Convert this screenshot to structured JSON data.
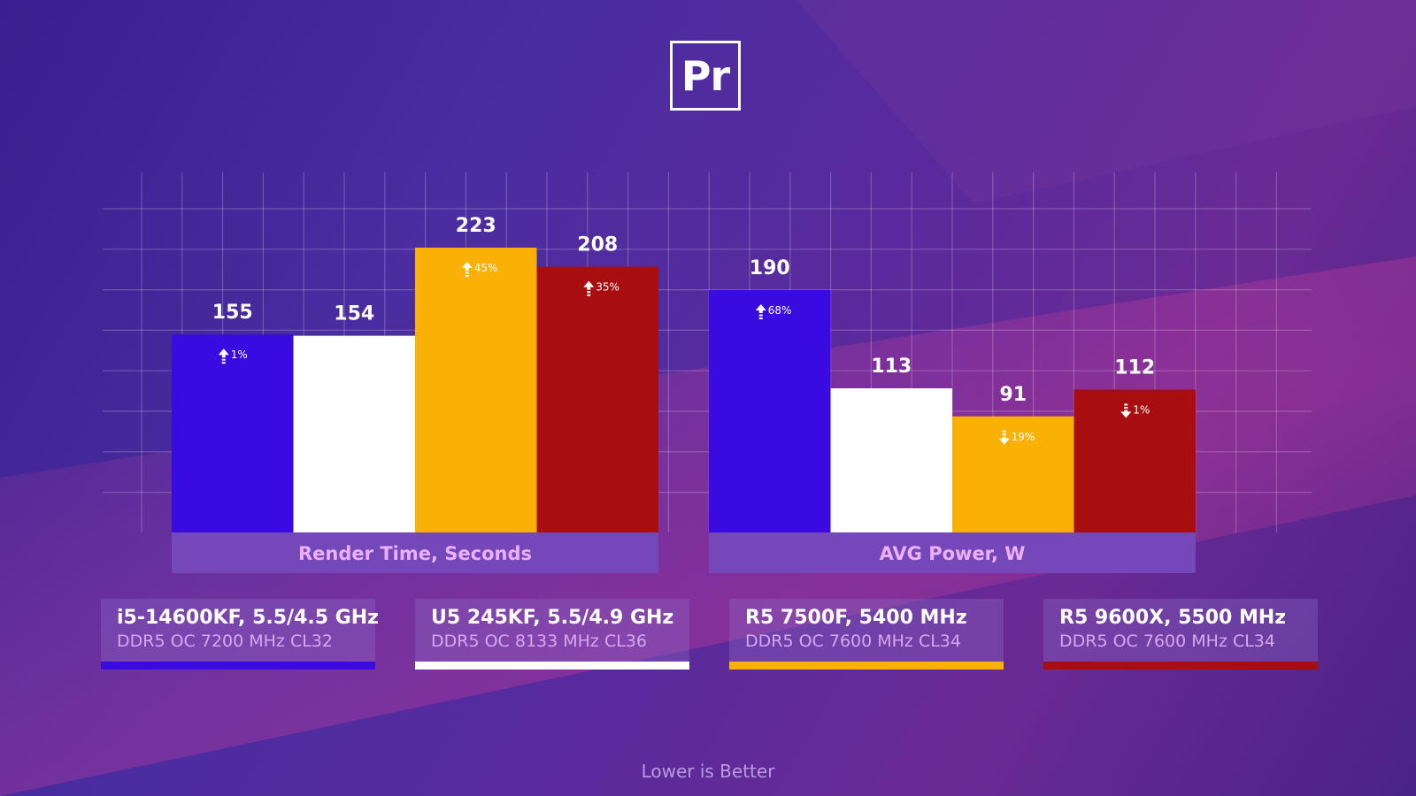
{
  "logo_text": "Pr",
  "footer": "Lower is Better",
  "colors": {
    "i5": "#3a0be0",
    "u5": "#ffffff",
    "r5_7500f": "#fbb006",
    "r5_9600x": "#a80e10",
    "category_band": "#7448b8",
    "category_text": "#ecb0ff"
  },
  "legend": [
    {
      "name": "i5-14600KF, 5.5/4.5 GHz",
      "sub": "DDR5 OC 7200 MHz CL32",
      "color": "#3a0be0"
    },
    {
      "name": "U5 245KF, 5.5/4.9 GHz",
      "sub": "DDR5 OC 8133 MHz CL36",
      "color": "#ffffff"
    },
    {
      "name": "R5 7500F, 5400 MHz",
      "sub": "DDR5 OC 7600 MHz CL34",
      "color": "#fbb006"
    },
    {
      "name": "R5 9600X, 5500 MHz",
      "sub": "DDR5 OC 7600 MHz CL34",
      "color": "#a80e10"
    }
  ],
  "chart_data": {
    "type": "bar",
    "categories": [
      "Render Time, Seconds",
      "AVG Power, W"
    ],
    "series": [
      {
        "name": "i5-14600KF, 5.5/4.5 GHz",
        "color": "#3a0be0",
        "values": [
          155,
          190
        ],
        "changes": [
          {
            "dir": "up",
            "text": "1%"
          },
          {
            "dir": "up",
            "text": "68%"
          }
        ]
      },
      {
        "name": "U5 245KF, 5.5/4.9 GHz",
        "color": "#ffffff",
        "values": [
          154,
          113
        ],
        "changes": [
          null,
          null
        ]
      },
      {
        "name": "R5 7500F, 5400 MHz",
        "color": "#fbb006",
        "values": [
          223,
          91
        ],
        "changes": [
          {
            "dir": "up",
            "text": "45%"
          },
          {
            "dir": "down",
            "text": "19%"
          }
        ]
      },
      {
        "name": "R5 9600X, 5500 MHz",
        "color": "#a80e10",
        "values": [
          208,
          112
        ],
        "changes": [
          {
            "dir": "up",
            "text": "35%"
          },
          {
            "dir": "down",
            "text": "1%"
          }
        ]
      }
    ],
    "group_scales": [
      {
        "value_min": 0,
        "value_max": 223
      },
      {
        "value_min": 0,
        "value_max": 190
      }
    ],
    "grid": true,
    "legend_position": "bottom",
    "footer": "Lower is Better"
  }
}
